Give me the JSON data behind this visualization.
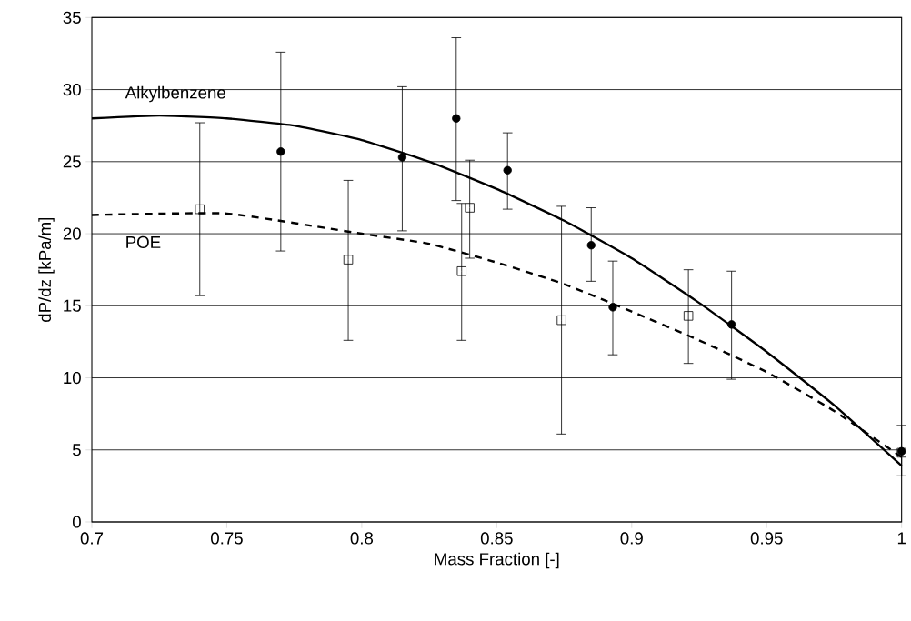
{
  "chart_data": {
    "type": "scatter",
    "xlabel": "Mass Fraction [-]",
    "ylabel": "dP/dz [kPa/m]",
    "xlim": [
      0.7,
      1
    ],
    "xticks": [
      0.7,
      0.75,
      0.8,
      0.85,
      0.9,
      0.95,
      1
    ],
    "ylim": [
      0,
      35
    ],
    "yticks": [
      0,
      5,
      10,
      15,
      20,
      25,
      30,
      35
    ],
    "grid": "y",
    "series": [
      {
        "color": "#000000",
        "marker": "circle",
        "x": [
          0.77,
          0.815,
          0.835,
          0.854,
          0.885,
          0.893,
          0.937,
          1.0
        ],
        "values": [
          25.7,
          25.3,
          28.0,
          24.4,
          19.2,
          14.9,
          13.7,
          4.9
        ],
        "errors": [
          [
            18.8,
            32.6
          ],
          [
            20.2,
            30.2
          ],
          [
            22.3,
            33.6
          ],
          [
            21.7,
            27.0
          ],
          [
            16.7,
            21.8
          ],
          [
            11.6,
            18.1
          ],
          [
            9.9,
            17.4
          ],
          [
            3.2,
            6.7
          ]
        ]
      },
      {
        "color": "#000000",
        "marker": "square",
        "x": [
          0.74,
          0.795,
          0.837,
          0.84,
          0.874,
          0.921,
          1.0
        ],
        "values": [
          21.7,
          18.2,
          17.4,
          21.8,
          14.0,
          14.3,
          4.8
        ],
        "errors": [
          [
            15.7,
            27.7
          ],
          [
            12.6,
            23.7
          ],
          [
            12.6,
            22.1
          ],
          [
            18.3,
            25.1
          ],
          [
            6.1,
            21.9
          ],
          [
            11.0,
            17.5
          ],
          null
        ]
      },
      {
        "name": "Alkylbenzene",
        "type": "line",
        "color": "#000000",
        "line_style": "solid",
        "marker": "none",
        "x": [
          0.7,
          0.725,
          0.75,
          0.775,
          0.8,
          0.825,
          0.85,
          0.875,
          0.9,
          0.925,
          0.95,
          0.975,
          1.0
        ],
        "values": [
          28.0,
          28.2,
          28.0,
          27.5,
          26.5,
          25.0,
          23.1,
          20.9,
          18.3,
          15.2,
          11.8,
          8.1,
          3.9
        ]
      },
      {
        "name": "POE",
        "type": "line",
        "color": "#000000",
        "line_style": "dashed",
        "marker": "none",
        "x": [
          0.7,
          0.75,
          0.8,
          0.825,
          0.85,
          0.875,
          0.9,
          0.925,
          0.95,
          0.975,
          1.0
        ],
        "values": [
          21.3,
          21.4,
          20.0,
          19.3,
          18.0,
          16.5,
          14.6,
          12.6,
          10.4,
          7.7,
          4.5
        ]
      }
    ]
  }
}
